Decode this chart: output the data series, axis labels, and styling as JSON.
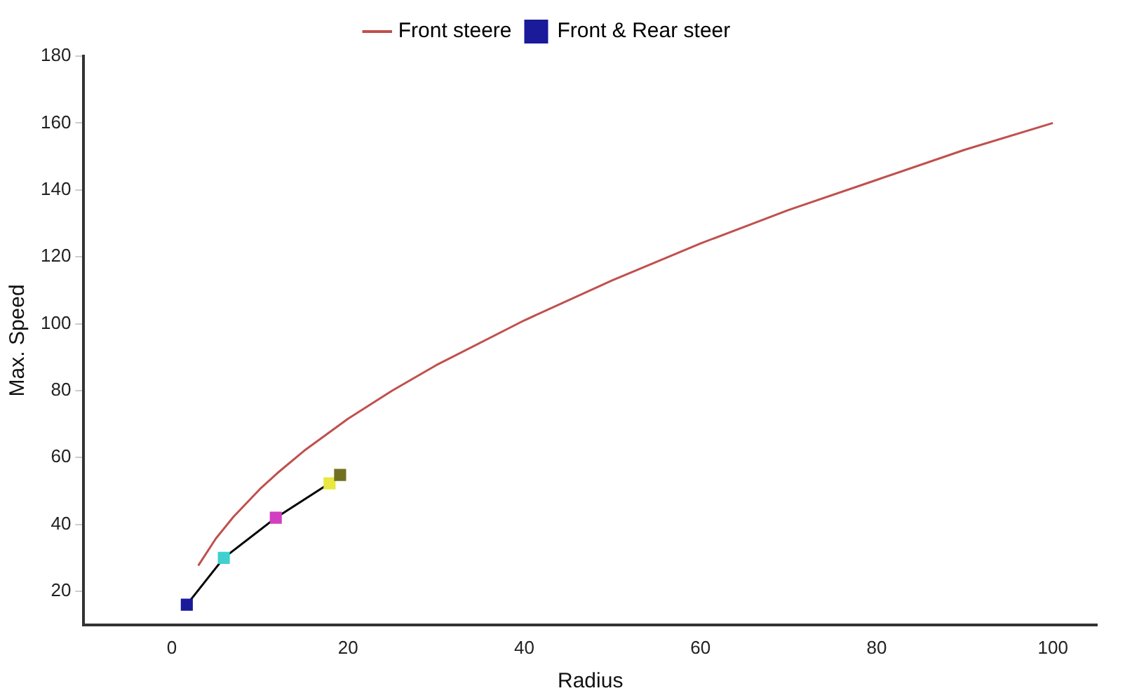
{
  "chart_data": {
    "type": "line",
    "xlabel": "Radius",
    "ylabel": "Max. Speed",
    "xlim": [
      -10,
      105
    ],
    "xticks": [
      0,
      20,
      40,
      60,
      80,
      100
    ],
    "ylim": [
      10,
      180
    ],
    "yticks": [
      20,
      40,
      60,
      80,
      100,
      120,
      140,
      160,
      180
    ],
    "grid": false,
    "legend": "top",
    "line_style": "solid",
    "series": [
      {
        "name": "Front steere",
        "color": "#c0504d",
        "marker": "none",
        "x": [
          3,
          5,
          7,
          10,
          12,
          15,
          20,
          25,
          30,
          40,
          50,
          60,
          70,
          80,
          90,
          100
        ],
        "values": [
          27.7,
          35.8,
          42.3,
          50.6,
          55.4,
          62,
          71.6,
          80,
          87.6,
          101,
          113,
          124,
          134,
          143,
          152,
          160
        ]
      },
      {
        "name": "Front & Rear steer",
        "color": "#000000",
        "marker": "square",
        "colors": [
          "#1a1a9a",
          "#40d0d0",
          "#d040c0",
          "#e8e840",
          "#707020"
        ],
        "x": [
          1.7,
          5.9,
          11.8,
          17.9,
          19.1
        ],
        "values": [
          16,
          30,
          42,
          52.3,
          54.8
        ]
      }
    ]
  }
}
